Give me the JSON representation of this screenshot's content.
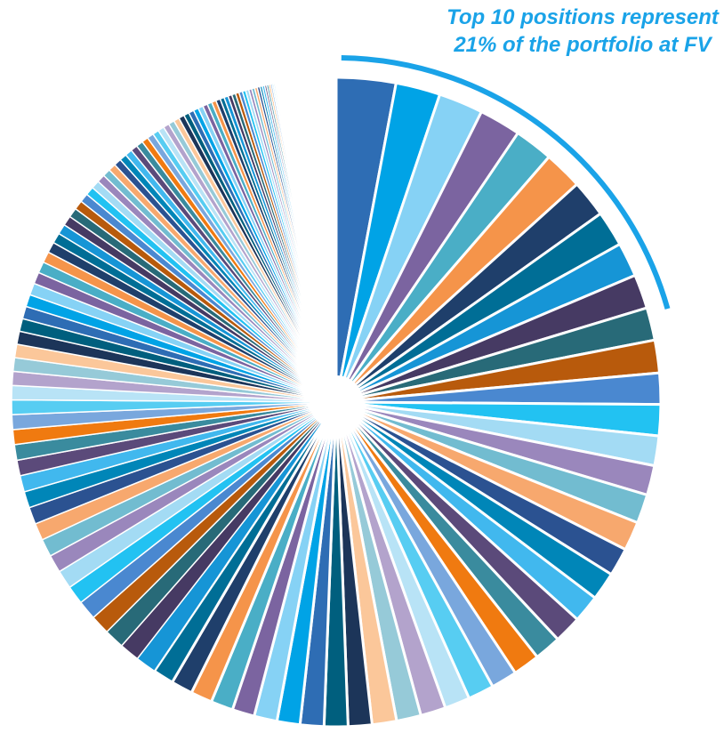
{
  "annotation": "Top 10 positions represent 21% of the portfolio at FV",
  "chart_data": {
    "type": "pie",
    "title": "",
    "description_text": "",
    "top_highlight": {
      "count": 10,
      "share_percent": 21,
      "accent": "#1aa3e8"
    },
    "values": [
      4.0,
      3.0,
      3.0,
      2.8,
      2.6,
      2.6,
      2.5,
      2.4,
      2.3,
      2.3,
      2.2,
      2.2,
      2.1,
      2.1,
      2.0,
      2.0,
      1.95,
      1.95,
      1.9,
      1.9,
      1.85,
      1.85,
      1.8,
      1.8,
      1.75,
      1.75,
      1.7,
      1.7,
      1.65,
      1.65,
      1.6,
      1.6,
      1.6,
      1.55,
      1.55,
      1.5,
      1.5,
      1.45,
      1.45,
      1.4,
      1.4,
      1.35,
      1.35,
      1.3,
      1.3,
      1.25,
      1.25,
      1.2,
      1.2,
      1.15,
      1.15,
      1.1,
      1.1,
      1.05,
      1.05,
      1.0,
      1.0,
      0.98,
      0.96,
      0.94,
      0.92,
      0.9,
      0.88,
      0.86,
      0.84,
      0.82,
      0.8,
      0.78,
      0.76,
      0.74,
      0.72,
      0.7,
      0.68,
      0.66,
      0.64,
      0.62,
      0.6,
      0.58,
      0.56,
      0.54,
      0.52,
      0.5,
      0.5,
      0.48,
      0.48,
      0.46,
      0.46,
      0.44,
      0.44,
      0.42,
      0.42,
      0.4,
      0.4,
      0.38,
      0.38,
      0.36,
      0.36,
      0.34,
      0.34,
      0.32,
      0.32,
      0.3,
      0.3,
      0.28,
      0.28,
      0.26,
      0.26,
      0.24,
      0.24,
      0.22,
      0.22,
      0.2,
      0.2,
      0.18,
      0.18,
      0.16,
      0.16,
      0.14,
      0.14,
      0.12,
      0.12,
      0.1,
      0.1,
      0.08,
      0.08,
      0.06,
      0.06,
      0.04
    ],
    "palette": [
      "#2e6db4",
      "#00a3e6",
      "#86d2f5",
      "#7b64a0",
      "#4aaec6",
      "#f5944a",
      "#1f3f6b",
      "#006e96",
      "#1695d6",
      "#463a63",
      "#286a78",
      "#b85a0c",
      "#4a88d0",
      "#22c2f2",
      "#a3dbf4",
      "#9a87bc",
      "#72bcd0",
      "#f7a86e",
      "#2b5291",
      "#0086b8",
      "#41b8ee",
      "#5b4a7a",
      "#3a8b9e",
      "#f07a10",
      "#79a7dd",
      "#57cdf2",
      "#b8e3f6",
      "#b3a3cc",
      "#96cad8",
      "#fbc79a",
      "#1c3559",
      "#005f7e"
    ],
    "start_angle_deg": 0,
    "center": "white hub"
  }
}
